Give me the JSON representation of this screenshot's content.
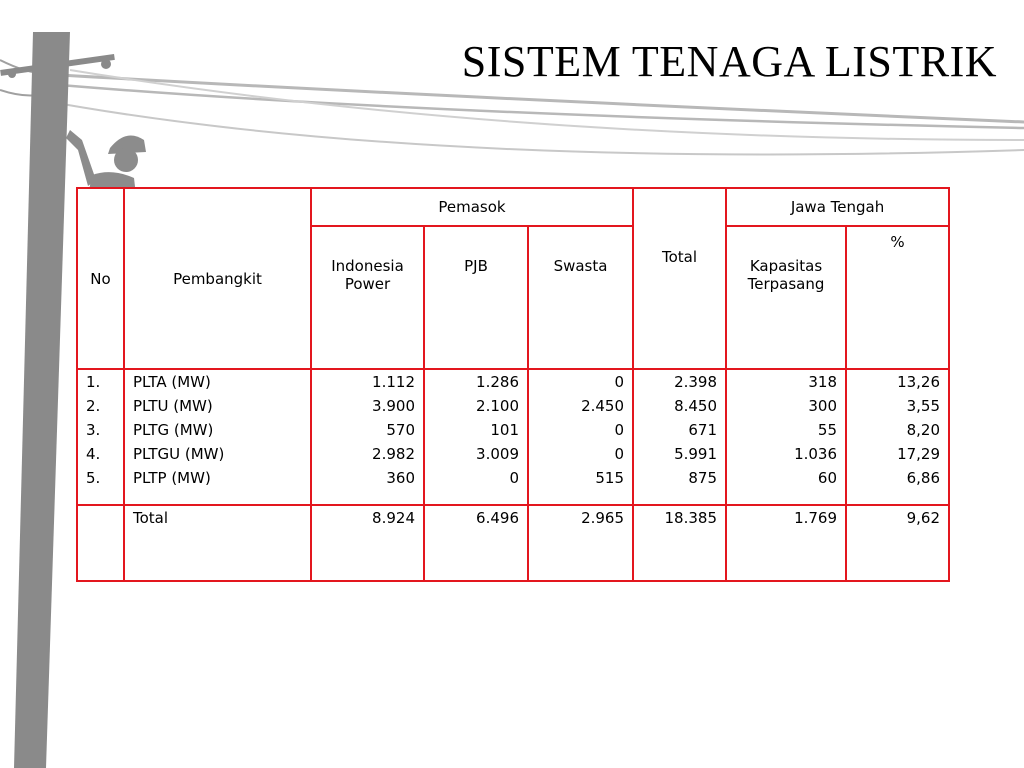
{
  "slide": {
    "title": "SISTEM TENAGA LISTRIK"
  },
  "table": {
    "headers": {
      "no": "No",
      "pembangkit": "Pembangkit",
      "pemasok": "Pemasok",
      "total": "Total",
      "jawa_tengah": "Jawa Tengah",
      "indonesia_power_1": "Indonesia",
      "indonesia_power_2": "Power",
      "pjb": "PJB",
      "swasta": "Swasta",
      "kapasitas_1": "Kapasitas",
      "kapasitas_2": "Terpasang",
      "percent": "%"
    },
    "rows": [
      {
        "no": "1.",
        "pembangkit": "PLTA (MW)",
        "indonesia_power": "1.112",
        "pjb": "1.286",
        "swasta": "0",
        "total": "2.398",
        "kapasitas": "318",
        "percent": "13,26"
      },
      {
        "no": "2.",
        "pembangkit": "PLTU (MW)",
        "indonesia_power": "3.900",
        "pjb": "2.100",
        "swasta": "2.450",
        "total": "8.450",
        "kapasitas": "300",
        "percent": "3,55"
      },
      {
        "no": "3.",
        "pembangkit": "PLTG (MW)",
        "indonesia_power": "570",
        "pjb": "101",
        "swasta": "0",
        "total": "671",
        "kapasitas": "55",
        "percent": "8,20"
      },
      {
        "no": "4.",
        "pembangkit": "PLTGU (MW)",
        "indonesia_power": "2.982",
        "pjb": "3.009",
        "swasta": "0",
        "total": "5.991",
        "kapasitas": "1.036",
        "percent": "17,29"
      },
      {
        "no": "5.",
        "pembangkit": "PLTP (MW)",
        "indonesia_power": "360",
        "pjb": "0",
        "swasta": "515",
        "total": "875",
        "kapasitas": "60",
        "percent": "6,86"
      }
    ],
    "total_row": {
      "label": "Total",
      "indonesia_power": "8.924",
      "pjb": "6.496",
      "swasta": "2.965",
      "total": "18.385",
      "kapasitas": "1.769",
      "percent": "9,62"
    }
  },
  "colors": {
    "table_border": "#e3161e",
    "silhouette": "#8c8c8c",
    "wires": "#b5b5b5"
  },
  "decor": {
    "background_image": "utility-pole-lineman-silhouette"
  }
}
